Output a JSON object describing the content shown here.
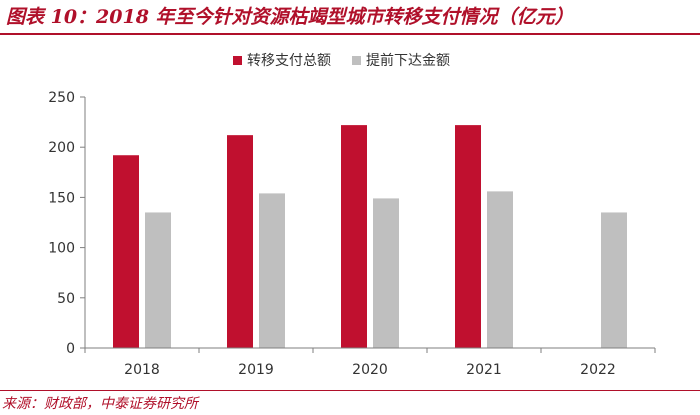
{
  "title": "图表 10：2018 年至今针对资源枯竭型城市转移支付情况（亿元）",
  "source": "来源：财政部，中泰证券研究所",
  "colors": {
    "series_1": "#c0102f",
    "series_2": "#bfbfbf",
    "accent": "#b0102a",
    "axis": "#7f7f7f",
    "text": "#333333"
  },
  "chart_data": {
    "type": "bar",
    "categories": [
      "2018",
      "2019",
      "2020",
      "2021",
      "2022"
    ],
    "series": [
      {
        "name": "转移支付总额",
        "values": [
          192,
          212,
          222,
          222,
          null
        ]
      },
      {
        "name": "提前下达金额",
        "values": [
          135,
          154,
          149,
          156,
          135
        ]
      }
    ],
    "ylim": [
      0,
      250
    ],
    "yticks": [
      0,
      50,
      100,
      150,
      200,
      250
    ],
    "grid": false,
    "legend": "top-center"
  }
}
